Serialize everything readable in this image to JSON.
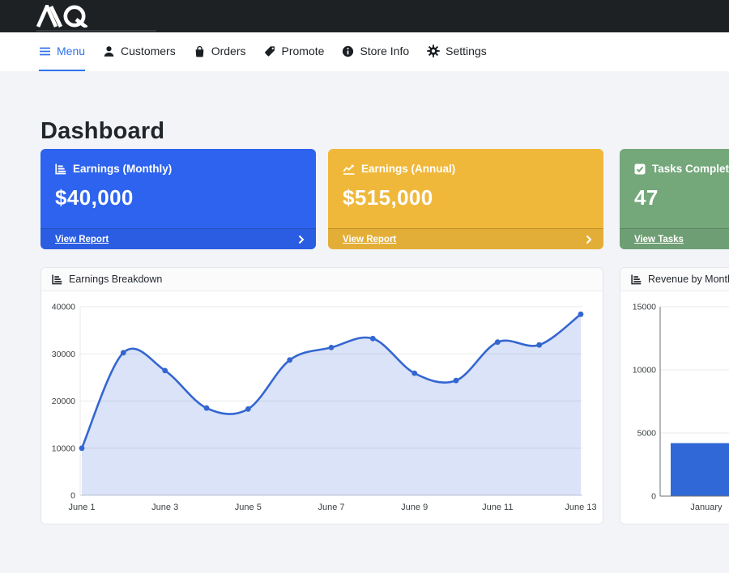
{
  "topbar": {
    "brand": "AQ"
  },
  "nav": {
    "items": [
      {
        "label": "Menu",
        "icon": "hamburger-icon",
        "active": true
      },
      {
        "label": "Customers",
        "icon": "person-icon",
        "active": false
      },
      {
        "label": "Orders",
        "icon": "shopping-bag-icon",
        "active": false
      },
      {
        "label": "Promote",
        "icon": "tag-icon",
        "active": false
      },
      {
        "label": "Store Info",
        "icon": "info-circle-icon",
        "active": false
      },
      {
        "label": "Settings",
        "icon": "gear-icon",
        "active": false
      }
    ]
  },
  "page": {
    "title": "Dashboard"
  },
  "cards": [
    {
      "title": "Earnings (Monthly)",
      "value": "$40,000",
      "footer_link": "View Report",
      "icon": "bar-chart-icon",
      "color": "#2d63ee"
    },
    {
      "title": "Earnings (Annual)",
      "value": "$515,000",
      "footer_link": "View Report",
      "icon": "line-chart-icon",
      "color": "#f0b83a"
    },
    {
      "title": "Tasks Completed",
      "value": "47",
      "footer_link": "View Tasks",
      "icon": "check-square-icon",
      "color": "#74a77a"
    }
  ],
  "chart_data": [
    {
      "type": "area",
      "title": "Earnings Breakdown",
      "x": [
        "June 1",
        "June 2",
        "June 3",
        "June 4",
        "June 5",
        "June 6",
        "June 7",
        "June 8",
        "June 9",
        "June 10",
        "June 11",
        "June 12",
        "June 13"
      ],
      "values": [
        10000,
        30250,
        26450,
        18500,
        18300,
        28700,
        31350,
        33250,
        25900,
        24350,
        32500,
        31900,
        38400
      ],
      "xtick_indices": [
        0,
        2,
        4,
        6,
        8,
        10,
        12
      ],
      "ylim": [
        0,
        40000
      ],
      "yticks": [
        0,
        10000,
        20000,
        30000,
        40000
      ],
      "line_color": "#3466d1",
      "fill_opacity": 0.18,
      "grid": true,
      "legend": "none"
    },
    {
      "type": "bar",
      "title": "Revenue by Month",
      "categories": [
        "January"
      ],
      "values": [
        4200
      ],
      "ylim": [
        0,
        15000
      ],
      "yticks": [
        0,
        5000,
        10000,
        15000
      ],
      "bar_color": "#3168d8",
      "grid": true,
      "legend": "none"
    }
  ]
}
